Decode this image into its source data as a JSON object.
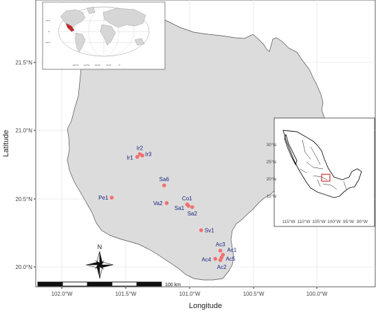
{
  "map": {
    "x_axis_title": "Longitude",
    "y_axis_title": "Latitude",
    "x_ticks": [
      "102.0°W",
      "101.5°W",
      "101.0°W",
      "100.5°W",
      "100.0°W"
    ],
    "y_ticks": [
      "21.5°N",
      "21.0°N",
      "20.5°N",
      "20.0°N"
    ],
    "colors": {
      "region_fill": "#dcdcdc",
      "point": "#f07070",
      "label": "#1a237e",
      "panel": "#ffffff",
      "grid": "#e6e6e6"
    }
  },
  "sites": [
    {
      "name": "Ir2",
      "lon": -101.39,
      "lat": 20.83
    },
    {
      "name": "Ir3",
      "lon": -101.37,
      "lat": 20.82
    },
    {
      "name": "Ir1",
      "lon": -101.41,
      "lat": 20.81
    },
    {
      "name": "Sa6",
      "lon": -101.2,
      "lat": 20.6
    },
    {
      "name": "Pe1",
      "lon": -101.61,
      "lat": 20.51
    },
    {
      "name": "Co1",
      "lon": -101.02,
      "lat": 20.46
    },
    {
      "name": "Va2",
      "lon": -101.18,
      "lat": 20.47
    },
    {
      "name": "Sa1",
      "lon": -101.01,
      "lat": 20.45
    },
    {
      "name": "Sa2",
      "lon": -100.98,
      "lat": 20.44
    },
    {
      "name": "Sv1",
      "lon": -100.91,
      "lat": 20.27
    },
    {
      "name": "Ac3",
      "lon": -100.76,
      "lat": 20.12
    },
    {
      "name": "Ac1",
      "lon": -100.74,
      "lat": 20.09
    },
    {
      "name": "Ac5",
      "lon": -100.75,
      "lat": 20.07
    },
    {
      "name": "Ac4",
      "lon": -100.8,
      "lat": 20.06
    },
    {
      "name": "Ac2",
      "lon": -100.76,
      "lat": 20.05
    }
  ],
  "scale_bar": {
    "label": "100 km"
  },
  "north_arrow": {
    "label": "N"
  },
  "inset_mexico": {
    "x_ticks": [
      "115°W",
      "110°W",
      "105°W",
      "100°W",
      "95°W",
      "90°W"
    ],
    "y_ticks": [
      "30°N",
      "25°N",
      "20°N",
      "15°N"
    ]
  },
  "inset_world": {
    "ticks_lon": [
      "160°W",
      "120°W",
      "80°W",
      "40°W",
      "0°"
    ],
    "ticks_lat": [
      "40°N",
      "0°",
      "40°S"
    ]
  }
}
